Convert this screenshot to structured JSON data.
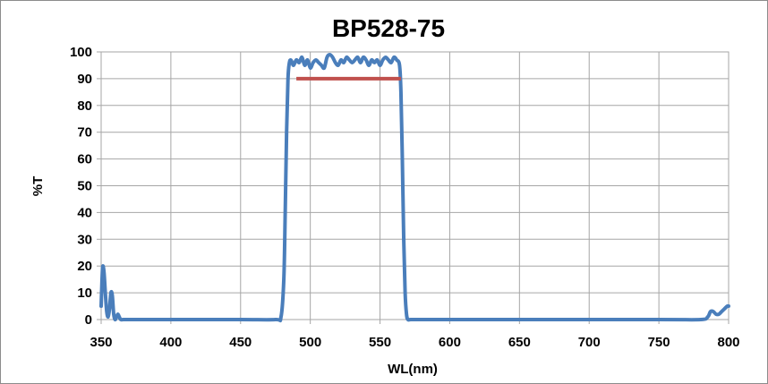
{
  "chart_data": {
    "type": "line",
    "title": "BP528-75",
    "xlabel": "WL(nm)",
    "ylabel": "%T",
    "xlim": [
      350,
      800
    ],
    "ylim": [
      0,
      100
    ],
    "x_ticks": [
      350,
      400,
      450,
      500,
      550,
      600,
      650,
      700,
      750,
      800
    ],
    "y_ticks": [
      0,
      10,
      20,
      30,
      40,
      50,
      60,
      70,
      80,
      90,
      100
    ],
    "grid": true,
    "legend": "none",
    "colors": {
      "series": "#4a7ebb",
      "marker_line": "#c0504d",
      "grid": "#a6a6a6",
      "frame": "#8c8c8c"
    },
    "series": [
      {
        "x": [
          350,
          351,
          352,
          353,
          354,
          355,
          356,
          357,
          358,
          359,
          360,
          361,
          362,
          363,
          364,
          366,
          370,
          400,
          450,
          475,
          479,
          481,
          482,
          483,
          484,
          485,
          486,
          487,
          488,
          490,
          492,
          494,
          496,
          498,
          500,
          502,
          504,
          506,
          508,
          510,
          512,
          514,
          516,
          518,
          520,
          522,
          524,
          526,
          528,
          530,
          532,
          534,
          536,
          538,
          540,
          542,
          544,
          546,
          548,
          550,
          552,
          554,
          556,
          558,
          560,
          562,
          564,
          565,
          566,
          567,
          568,
          569,
          570,
          572,
          580,
          650,
          750,
          780,
          785,
          787,
          789,
          791,
          793,
          795,
          797,
          799,
          800
        ],
        "y": [
          5,
          19,
          18,
          10,
          3,
          1,
          4,
          10,
          9,
          2,
          0,
          1,
          2,
          1,
          0,
          0,
          0,
          0,
          0,
          0,
          1,
          15,
          40,
          70,
          90,
          96,
          97,
          96,
          95,
          97,
          96,
          98,
          95,
          97,
          94,
          96,
          97,
          96,
          95,
          94,
          98,
          99,
          98,
          96,
          95,
          97,
          96,
          98,
          97,
          96,
          97,
          98,
          96,
          98,
          97,
          95,
          97,
          96,
          97,
          95,
          97,
          98,
          97,
          96,
          98,
          97,
          95,
          85,
          60,
          30,
          10,
          2,
          0,
          0,
          0,
          0,
          0,
          0,
          1,
          3,
          3,
          2,
          2,
          3,
          4,
          5,
          5
        ]
      }
    ],
    "annotations": [
      {
        "type": "hline",
        "y": 90,
        "x_start": 490,
        "x_end": 565
      }
    ]
  }
}
